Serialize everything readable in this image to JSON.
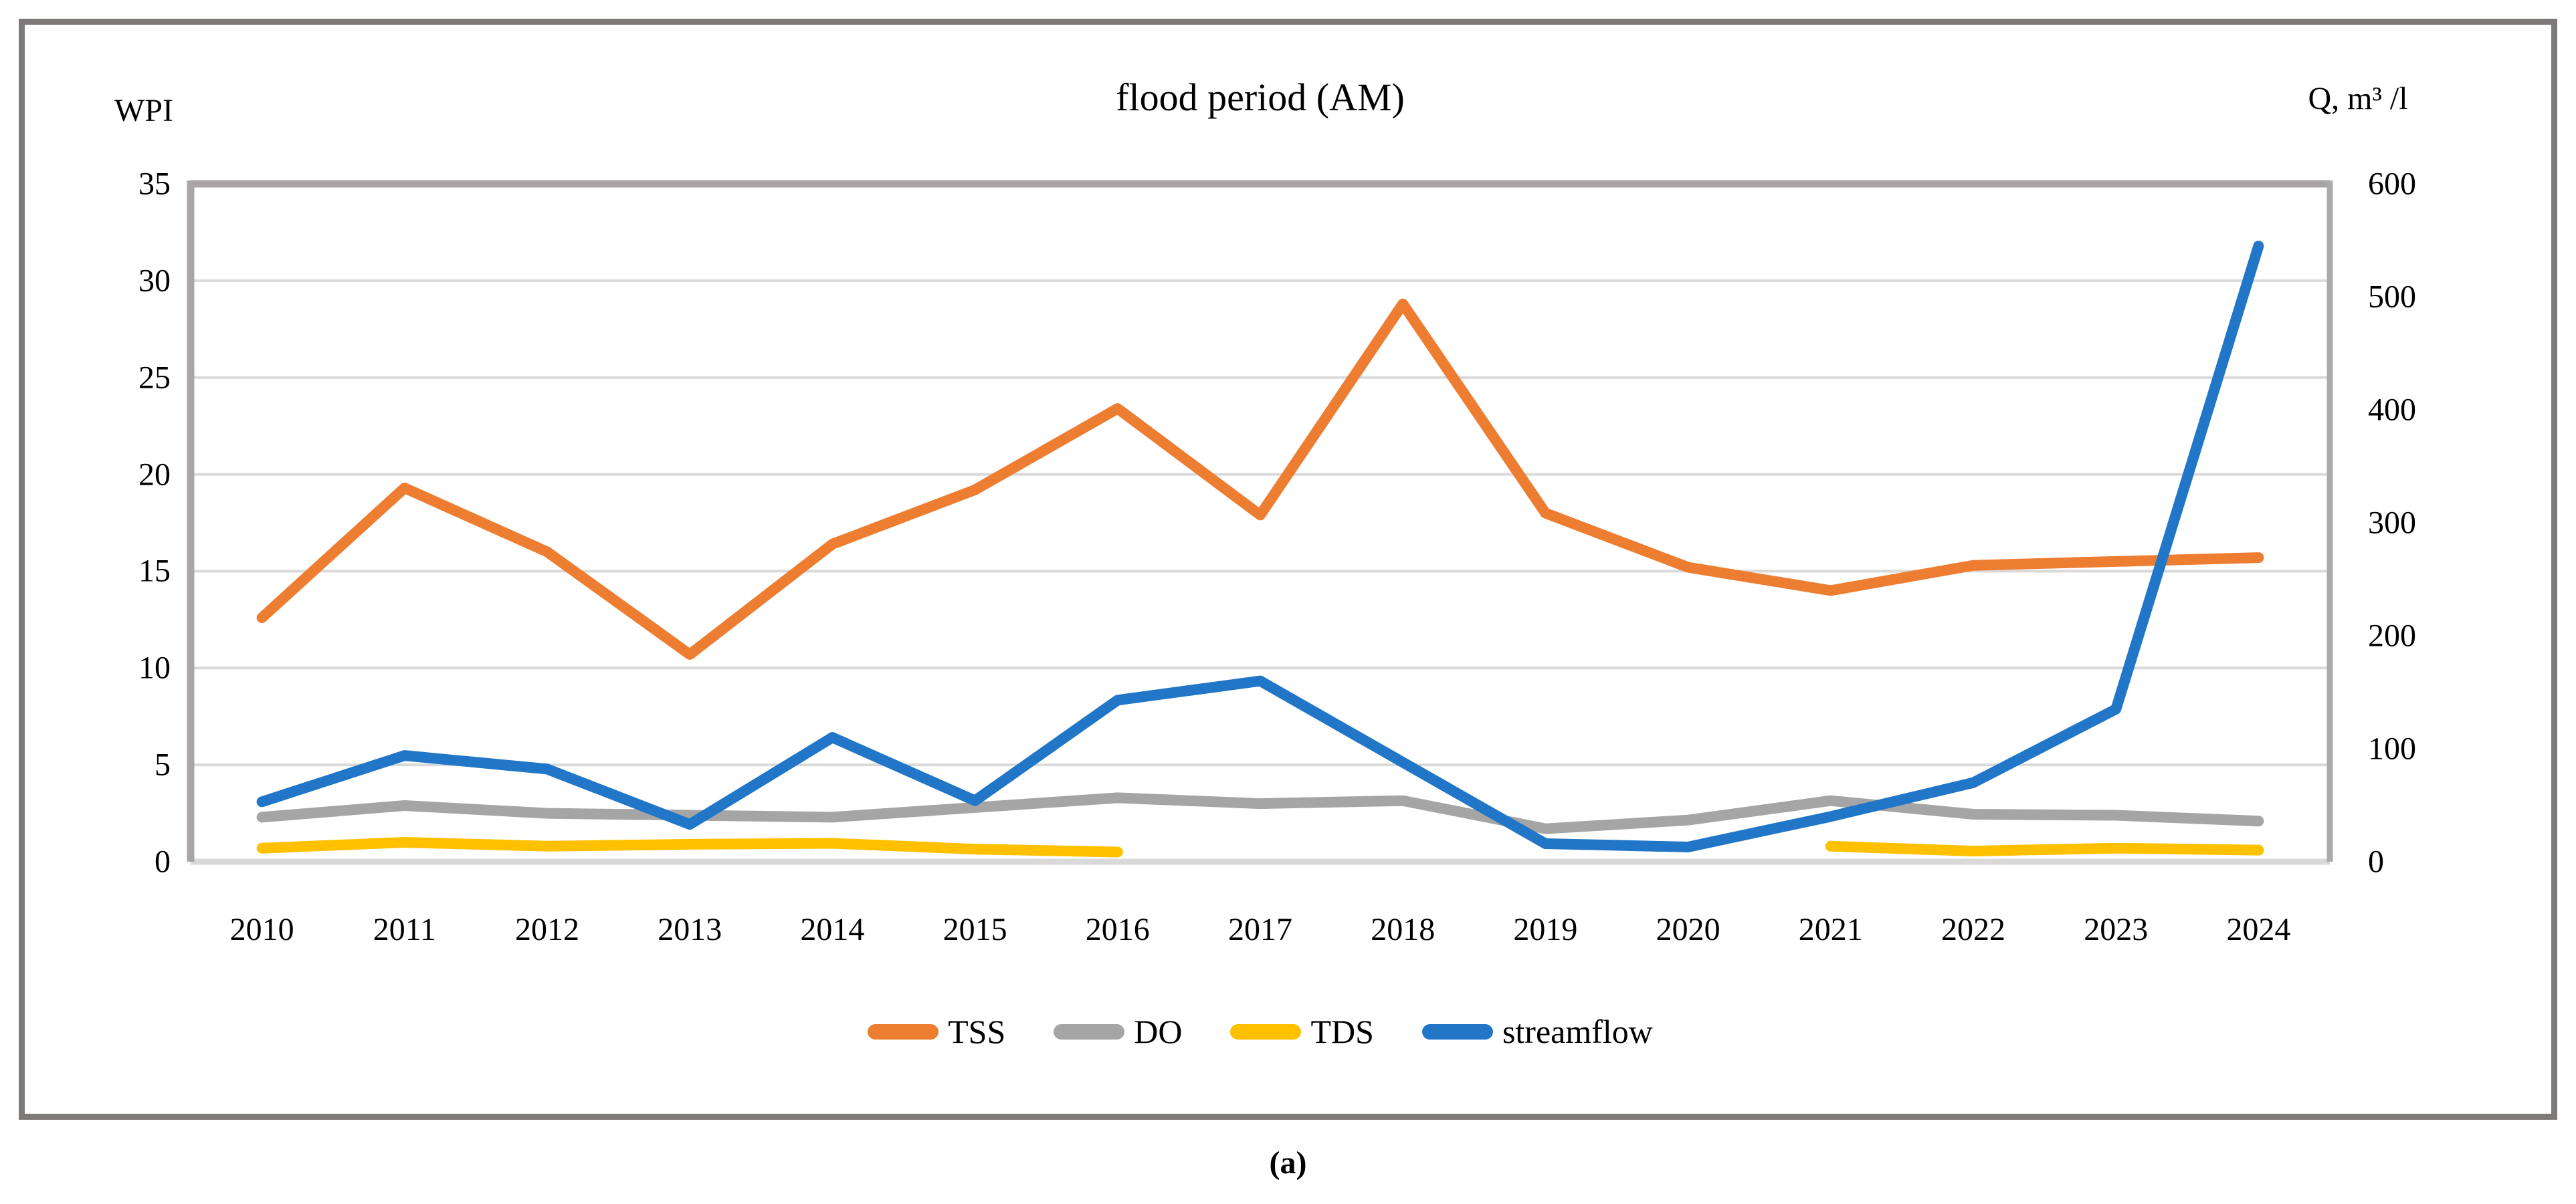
{
  "figure": {
    "footer": "(a)"
  },
  "chart_data": {
    "type": "line",
    "title": "flood period (AM)",
    "left_axis": {
      "label": "WPI",
      "min": 0,
      "max": 35,
      "ticks": [
        0,
        5,
        10,
        15,
        20,
        25,
        30,
        35
      ]
    },
    "right_axis": {
      "label": "Q, m³ /l",
      "min": 0,
      "max": 600,
      "ticks": [
        0,
        100,
        200,
        300,
        400,
        500,
        600
      ]
    },
    "categories": [
      "2010",
      "2011",
      "2012",
      "2013",
      "2014",
      "2015",
      "2016",
      "2017",
      "2018",
      "2019",
      "2020",
      "2021",
      "2022",
      "2023",
      "2024"
    ],
    "grid": "horizontal",
    "legend_position": "bottom",
    "series": [
      {
        "name": "TSS",
        "axis": "left",
        "color": "#ED7D31",
        "values": [
          12.6,
          19.3,
          16.0,
          10.7,
          16.4,
          19.2,
          23.4,
          17.9,
          28.8,
          18.0,
          15.2,
          14.0,
          15.3,
          15.5,
          15.7
        ]
      },
      {
        "name": "DO",
        "axis": "left",
        "color": "#A5A5A5",
        "values": [
          2.3,
          2.9,
          2.5,
          2.4,
          2.3,
          2.8,
          3.3,
          3.0,
          3.15,
          1.7,
          2.15,
          3.15,
          2.45,
          2.4,
          2.1
        ]
      },
      {
        "name": "TDS",
        "axis": "left",
        "color": "#FFC000",
        "values": [
          0.7,
          1.0,
          0.8,
          0.9,
          0.95,
          0.65,
          0.5,
          null,
          null,
          null,
          null,
          0.8,
          0.55,
          0.7,
          0.6
        ]
      },
      {
        "name": "streamflow",
        "axis": "right",
        "color": "#2176C7",
        "values": [
          53,
          94,
          82,
          33,
          110,
          54,
          143,
          160,
          88,
          16,
          13,
          40,
          70,
          135,
          545
        ]
      }
    ]
  },
  "colors": {
    "gridline": "#D9D9D9",
    "axis_dark": "#A9A5A5",
    "axis_right": "#ABABAB",
    "axis_bottom": "#D9D9D9",
    "frame_border": "#7E7A7A"
  }
}
